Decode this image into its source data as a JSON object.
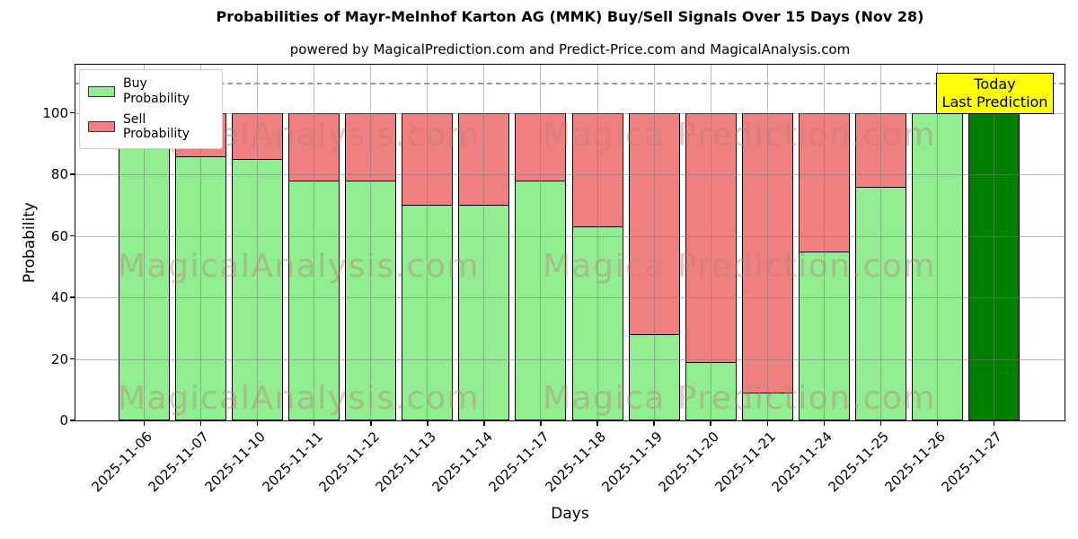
{
  "title": "Probabilities of Mayr-Melnhof Karton AG (MMK) Buy/Sell Signals Over 15 Days (Nov 28)",
  "subtitle": "powered by MagicalPrediction.com and Predict-Price.com and MagicalAnalysis.com",
  "axes": {
    "xlabel": "Days",
    "ylabel": "Probability",
    "yticks": [
      0,
      20,
      40,
      60,
      80,
      100
    ],
    "ylim": [
      0,
      115.7
    ]
  },
  "legend": {
    "items": [
      {
        "label": "Buy Probability",
        "color": "#90ee90"
      },
      {
        "label": "Sell Probability",
        "color": "#f08080"
      }
    ]
  },
  "annotation": {
    "line1": "Today",
    "line2": "Last Prediction",
    "bg": "#ffff00"
  },
  "watermark": {
    "left_text": "MagicalAnalysis.com",
    "right_text": "Magica Prediction.com",
    "color": "rgba(193,123,123,0.42)"
  },
  "colors": {
    "buy": "#90ee90",
    "sell": "#f08080",
    "today_bar": "#008000",
    "annotation_bg": "#ffff00",
    "grid": "#787878",
    "dashed_line": "#9a9a9a",
    "bar_edge": "#000000"
  },
  "chart_data": {
    "type": "bar",
    "stacked": true,
    "title": "Probabilities of Mayr-Melnhof Karton AG (MMK) Buy/Sell Signals Over 15 Days (Nov 28)",
    "xlabel": "Days",
    "ylabel": "Probability",
    "ylim": [
      0,
      115.7
    ],
    "yticks": [
      0,
      20,
      40,
      60,
      80,
      100
    ],
    "grid": true,
    "legend_position": "upper left",
    "dashed_line_y": 110,
    "bar_edge_color": "#000000",
    "categories": [
      "2025-11-06",
      "2025-11-07",
      "2025-11-10",
      "2025-11-11",
      "2025-11-12",
      "2025-11-13",
      "2025-11-14",
      "2025-11-17",
      "2025-11-18",
      "2025-11-19",
      "2025-11-20",
      "2025-11-21",
      "2025-11-24",
      "2025-11-25",
      "2025-11-26",
      "2025-11-27"
    ],
    "series": [
      {
        "name": "Buy Probability",
        "color": "#90ee90",
        "values": [
          100,
          86,
          85,
          78,
          78,
          70,
          70,
          78,
          63,
          28,
          19,
          9,
          55,
          76,
          100,
          100
        ]
      },
      {
        "name": "Sell Probability",
        "color": "#f08080",
        "values": [
          0,
          14,
          15,
          22,
          22,
          30,
          30,
          22,
          37,
          72,
          81,
          91,
          45,
          24,
          0,
          0
        ]
      }
    ],
    "highlight_last_bar": {
      "index": 15,
      "color": "#008000",
      "note": "Today / Last Prediction"
    }
  }
}
